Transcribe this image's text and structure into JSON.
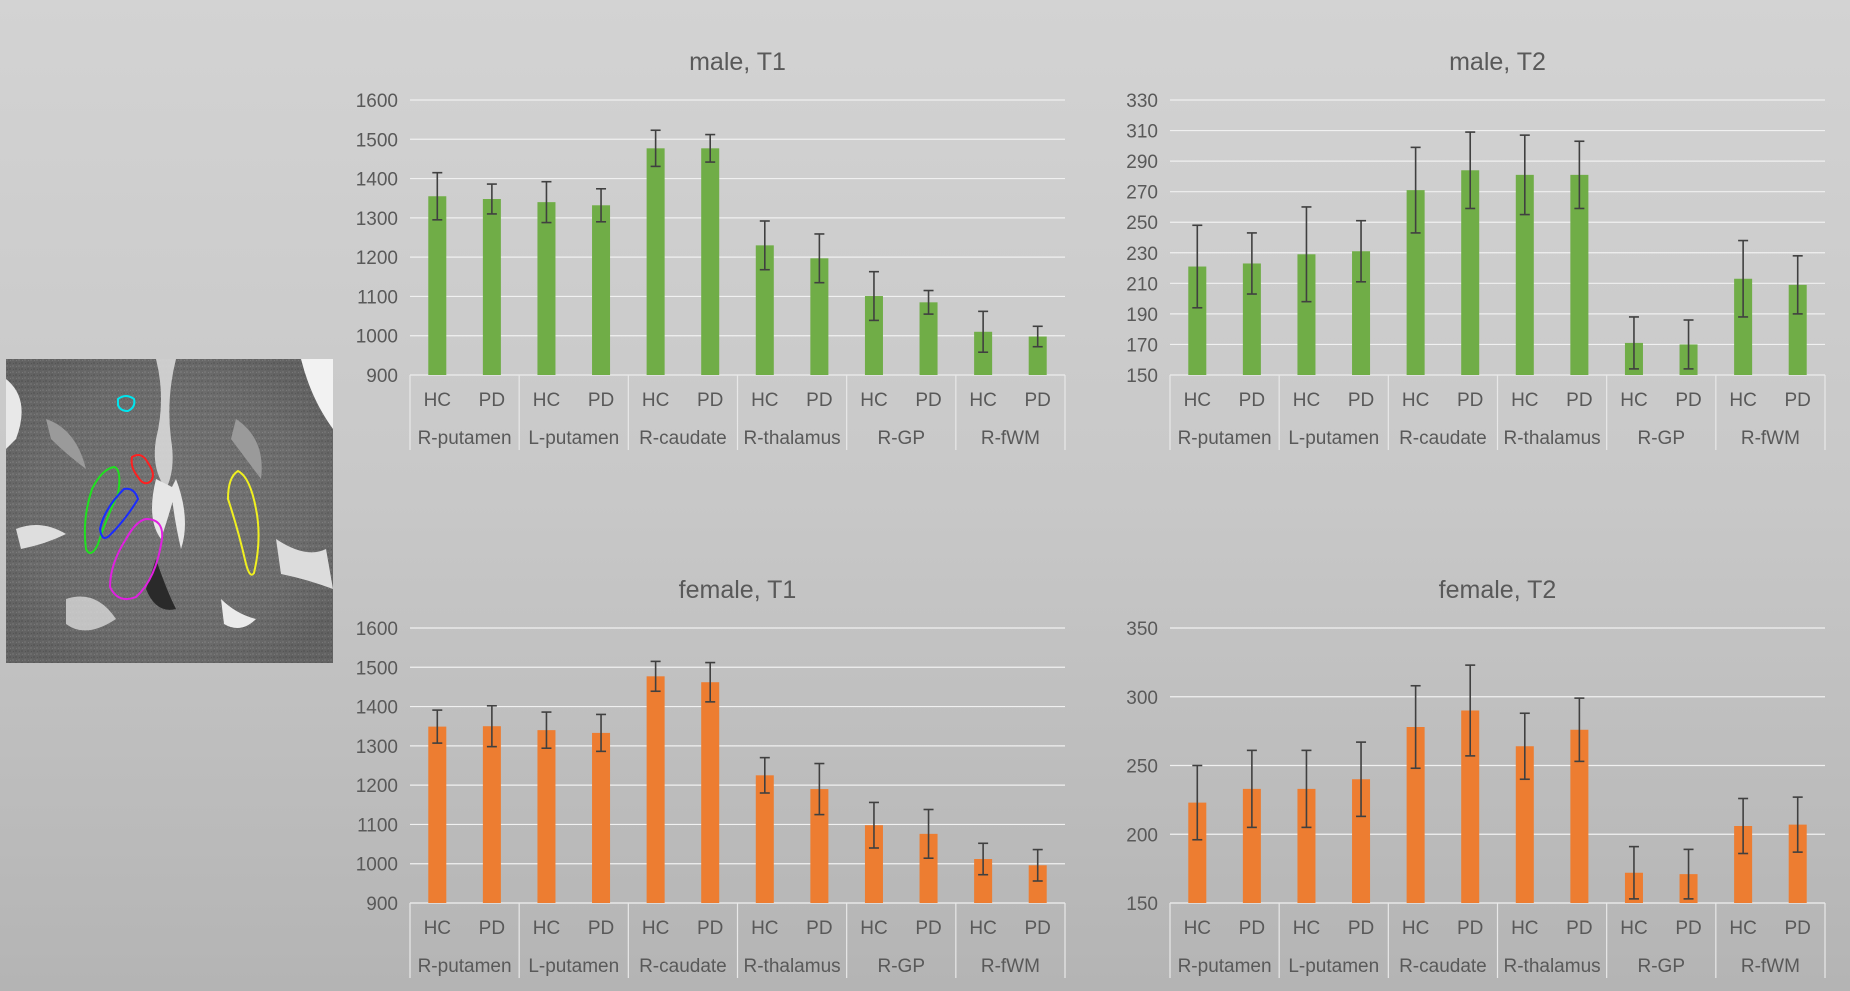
{
  "chart_data": [
    {
      "type": "bar",
      "title": "male, T1",
      "color": "#70ad47",
      "groups": [
        "R-putamen",
        "L-putamen",
        "R-caudate",
        "R-thalamus",
        "R-GP",
        "R-fWM"
      ],
      "subcategories": [
        "HC",
        "PD"
      ],
      "values": [
        1355,
        1348,
        1340,
        1332,
        1477,
        1477,
        1230,
        1197,
        1101,
        1085,
        1010,
        998
      ],
      "errors": [
        60,
        38,
        52,
        42,
        46,
        35,
        62,
        62,
        62,
        30,
        52,
        26
      ],
      "ylim": [
        900,
        1600
      ],
      "yticks": [
        "900",
        "1000",
        "1100",
        "1200",
        "1300",
        "1400",
        "1500",
        "1600"
      ]
    },
    {
      "type": "bar",
      "title": "male, T2",
      "color": "#70ad47",
      "groups": [
        "R-putamen",
        "L-putamen",
        "R-caudate",
        "R-thalamus",
        "R-GP",
        "R-fWM"
      ],
      "subcategories": [
        "HC",
        "PD"
      ],
      "values": [
        221,
        223,
        229,
        231,
        271,
        284,
        281,
        281,
        171,
        170,
        213,
        209
      ],
      "errors": [
        27,
        20,
        31,
        20,
        28,
        25,
        26,
        22,
        17,
        16,
        25,
        19
      ],
      "ylim": [
        150,
        330
      ],
      "yticks": [
        "150",
        "170",
        "190",
        "210",
        "230",
        "250",
        "270",
        "290",
        "310",
        "330"
      ]
    },
    {
      "type": "bar",
      "title": "female, T1",
      "color": "#ed7d31",
      "groups": [
        "R-putamen",
        "L-putamen",
        "R-caudate",
        "R-thalamus",
        "R-GP",
        "R-fWM"
      ],
      "subcategories": [
        "HC",
        "PD"
      ],
      "values": [
        1349,
        1350,
        1340,
        1333,
        1477,
        1462,
        1225,
        1190,
        1098,
        1076,
        1012,
        996
      ],
      "errors": [
        42,
        52,
        46,
        47,
        38,
        50,
        45,
        65,
        58,
        62,
        40,
        40
      ],
      "ylim": [
        900,
        1600
      ],
      "yticks": [
        "900",
        "1000",
        "1100",
        "1200",
        "1300",
        "1400",
        "1500",
        "1600"
      ]
    },
    {
      "type": "bar",
      "title": "female, T2",
      "color": "#ed7d31",
      "groups": [
        "R-putamen",
        "L-putamen",
        "R-caudate",
        "R-thalamus",
        "R-GP",
        "R-fWM"
      ],
      "subcategories": [
        "HC",
        "PD"
      ],
      "values": [
        223,
        233,
        233,
        240,
        278,
        290,
        264,
        276,
        172,
        171,
        206,
        207
      ],
      "errors": [
        27,
        28,
        28,
        27,
        30,
        33,
        24,
        23,
        19,
        18,
        20,
        20
      ],
      "ylim": [
        150,
        350
      ],
      "yticks": [
        "150",
        "200",
        "250",
        "300",
        "350"
      ]
    }
  ],
  "mri": {
    "region_colors": [
      "#00e5ee",
      "#ff2020",
      "#20e020",
      "#1a2cff",
      "#e020e0",
      "#f0f020"
    ]
  }
}
